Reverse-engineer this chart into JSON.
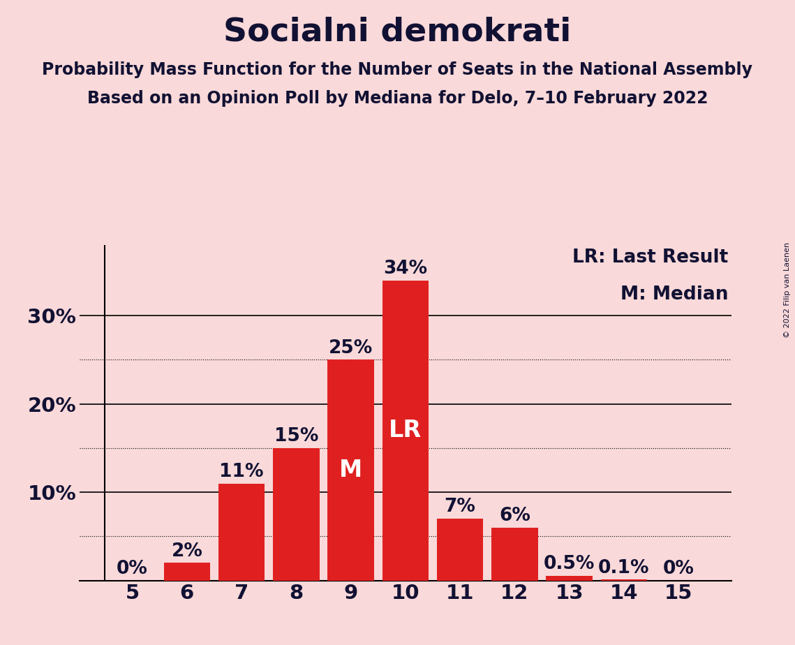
{
  "title": "Socialni demokrati",
  "subtitle1": "Probability Mass Function for the Number of Seats in the National Assembly",
  "subtitle2": "Based on an Opinion Poll by Mediana for Delo, 7–10 February 2022",
  "copyright": "© 2022 Filip van Laenen",
  "categories": [
    5,
    6,
    7,
    8,
    9,
    10,
    11,
    12,
    13,
    14,
    15
  ],
  "values": [
    0,
    2,
    11,
    15,
    25,
    34,
    7,
    6,
    0.5,
    0.1,
    0
  ],
  "labels": [
    "0%",
    "2%",
    "11%",
    "15%",
    "25%",
    "34%",
    "7%",
    "6%",
    "0.5%",
    "0.1%",
    "0%"
  ],
  "bar_color": "#e02020",
  "background_color": "#f9d9d9",
  "text_color": "#111133",
  "median_seat": 9,
  "last_result_seat": 10,
  "legend_lr": "LR: Last Result",
  "legend_m": "M: Median",
  "solid_yticks": [
    10,
    20,
    30
  ],
  "dotted_yticks": [
    5,
    15,
    25
  ],
  "ylim": [
    0,
    38
  ],
  "title_fontsize": 34,
  "subtitle_fontsize": 17,
  "label_fontsize": 19,
  "tick_fontsize": 21,
  "legend_fontsize": 19,
  "inside_label_fontsize": 24,
  "bar_width": 0.85
}
